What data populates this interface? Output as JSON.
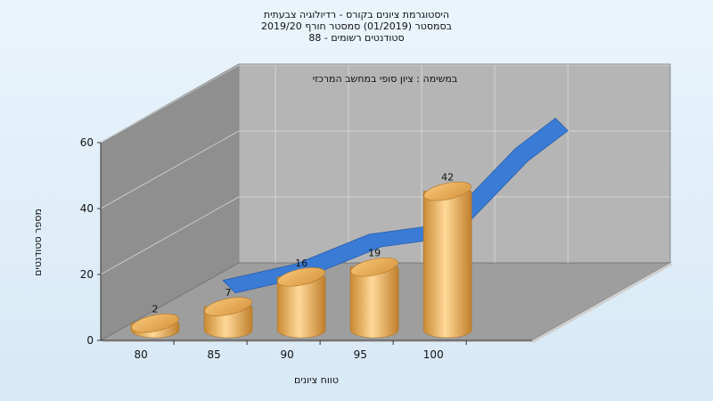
{
  "chart_data": {
    "type": "bar",
    "title_lines": [
      "היסטוגרמת ציונים בקורס - רדיולוגיה צבעתית",
      "בסמסטר  (01/2019)  סמסטר חורף 2019/20",
      "סטודנטים רשומים - 88"
    ],
    "subtitle": "במשימה : ציון סופי במחשב המרכזי",
    "xlabel": "טווח ציונים",
    "ylabel": "מספר סטודנטים",
    "x_ticks": [
      "80",
      "85",
      "90",
      "95",
      "100"
    ],
    "y_ticks": [
      "0",
      "20",
      "40",
      "60"
    ],
    "ylim": [
      0,
      60
    ],
    "categories": [
      "80",
      "85",
      "90",
      "95",
      "100"
    ],
    "values": [
      2,
      7,
      16,
      19,
      42
    ],
    "series": [
      {
        "type": "bar",
        "values": [
          2,
          7,
          16,
          19,
          42
        ]
      },
      {
        "type": "area",
        "values": [
          2,
          7,
          16,
          19,
          42
        ]
      }
    ],
    "grid": true,
    "colors": {
      "bar": "#e8a64a",
      "bar_highlight": "#ffd998",
      "area": "#3a7bd5",
      "wall": "#b5b5b5",
      "left_wall": "#8f8f8f",
      "floor": "#9e9e9e"
    }
  }
}
